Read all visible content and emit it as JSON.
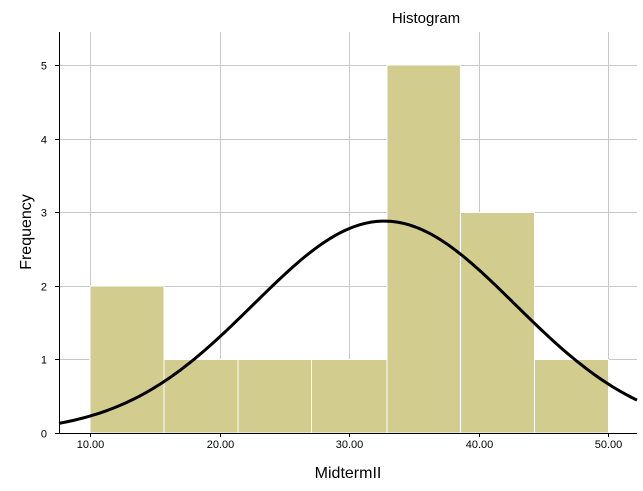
{
  "chart_data": {
    "type": "bar",
    "title": "Histogram",
    "xlabel": "MidtermII",
    "ylabel": "Frequency",
    "xlim": [
      7.6,
      52.2
    ],
    "ylim": [
      0,
      5.45
    ],
    "x_ticks": [
      10,
      20,
      30,
      40,
      50
    ],
    "x_tick_labels": [
      "10.00",
      "20.00",
      "30.00",
      "40.00",
      "50.00"
    ],
    "y_ticks": [
      0,
      1,
      2,
      3,
      4,
      5
    ],
    "y_tick_labels": [
      "0",
      "1",
      "2",
      "3",
      "4",
      "5"
    ],
    "grid": true,
    "bins": [
      {
        "x0": 10.0,
        "x1": 15.7,
        "value": 2
      },
      {
        "x0": 15.7,
        "x1": 21.4,
        "value": 1
      },
      {
        "x0": 21.4,
        "x1": 27.1,
        "value": 1
      },
      {
        "x0": 27.1,
        "x1": 32.9,
        "value": 1
      },
      {
        "x0": 32.9,
        "x1": 38.6,
        "value": 5
      },
      {
        "x0": 38.6,
        "x1": 44.3,
        "value": 3
      },
      {
        "x0": 44.3,
        "x1": 50.0,
        "value": 1
      }
    ],
    "normal_curve": {
      "mean": 32.7,
      "sd": 10.1,
      "peak": 2.88
    },
    "colors": {
      "bar_fill": "#D2CC8E",
      "bar_edge": "#FFFFFF",
      "curve": "#000000",
      "grid": "#C8C8C8",
      "axis": "#000000"
    }
  }
}
